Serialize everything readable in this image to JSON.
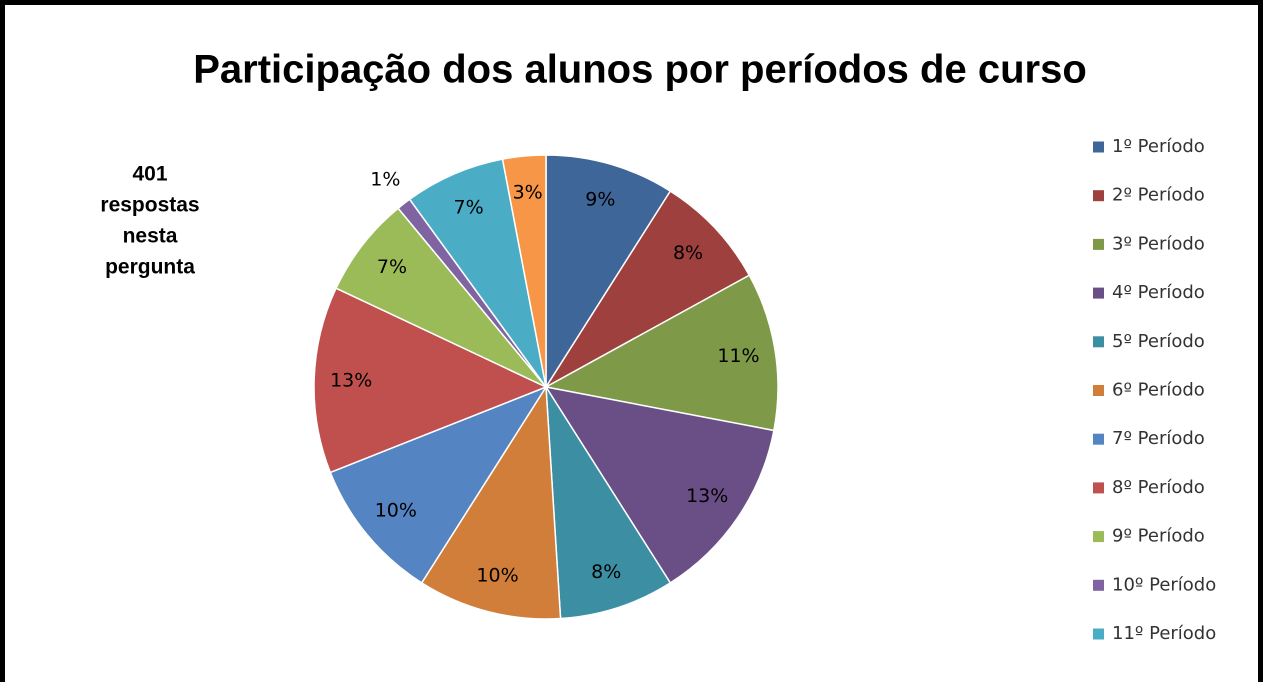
{
  "chart_data": {
    "type": "pie",
    "title": "Participação dos alunos por períodos de curso",
    "annotation": [
      "401",
      "respostas",
      "nesta",
      "pergunta"
    ],
    "categories": [
      "1º Período",
      "2º Período",
      "3º Período",
      "4º Período",
      "5º Período",
      "6º Período",
      "7º Período",
      "8º Período",
      "9º Período",
      "10º Período",
      "11º Período",
      null
    ],
    "values": [
      9,
      8,
      11,
      13,
      8,
      10,
      10,
      13,
      7,
      1,
      7,
      3
    ],
    "value_labels": [
      "9%",
      "8%",
      "11%",
      "13%",
      "8%",
      "10%",
      "10%",
      "13%",
      "7%",
      "1%",
      "7%",
      "3%"
    ],
    "colors": [
      "#3f6699",
      "#9e403e",
      "#7e9a48",
      "#6a4f86",
      "#3c8ea2",
      "#d07e39",
      "#5584c3",
      "#c0504d",
      "#9bbb59",
      "#8064a2",
      "#4bacc6",
      "#f79646"
    ],
    "legend": "right"
  }
}
